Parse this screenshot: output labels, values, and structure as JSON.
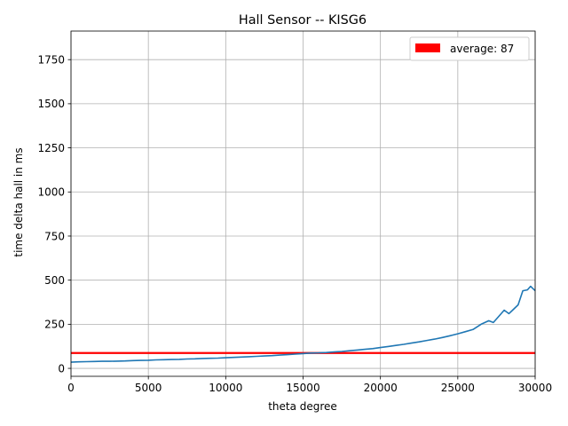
{
  "chart_data": {
    "type": "line",
    "title": "Hall Sensor  --  KISG6",
    "xlabel": "theta degree",
    "ylabel": "time delta hall in ms",
    "xlim": [
      0,
      30000
    ],
    "ylim": [
      -45,
      1912
    ],
    "xticks": [
      0,
      5000,
      10000,
      15000,
      20000,
      25000,
      30000
    ],
    "yticks": [
      0,
      250,
      500,
      750,
      1000,
      1250,
      1500,
      1750
    ],
    "grid": true,
    "legend_position": "top-right",
    "legend": [
      {
        "label": "average: 87",
        "color": "#ff0000"
      }
    ],
    "average_line": {
      "y": 87,
      "color": "#ff0000"
    },
    "series": [
      {
        "color": "#1f77b4",
        "x": [
          0,
          500,
          1000,
          1500,
          2000,
          2500,
          3000,
          3500,
          4000,
          4500,
          5000,
          5500,
          6000,
          6500,
          7000,
          7500,
          8000,
          8500,
          9000,
          9500,
          10000,
          10500,
          11000,
          11500,
          12000,
          12500,
          13000,
          13500,
          14000,
          14500,
          15000,
          15500,
          16000,
          16500,
          17000,
          17500,
          18000,
          18500,
          19000,
          19500,
          20000,
          20500,
          21000,
          21500,
          22000,
          22500,
          23000,
          23500,
          24000,
          24500,
          25000,
          25500,
          26000,
          26500,
          27000,
          27300,
          27600,
          28000,
          28300,
          28600,
          28900,
          29200,
          29500,
          29700,
          30000
        ],
        "y": [
          35,
          37,
          38,
          39,
          40,
          40,
          41,
          42,
          44,
          45,
          46,
          48,
          49,
          50,
          51,
          53,
          54,
          56,
          57,
          58,
          60,
          62,
          64,
          66,
          68,
          70,
          72,
          75,
          78,
          81,
          84,
          87,
          88,
          90,
          93,
          96,
          100,
          104,
          108,
          112,
          118,
          124,
          130,
          136,
          143,
          150,
          158,
          166,
          175,
          185,
          196,
          208,
          221,
          250,
          270,
          260,
          290,
          330,
          310,
          335,
          360,
          440,
          445,
          465,
          440
        ]
      }
    ]
  }
}
